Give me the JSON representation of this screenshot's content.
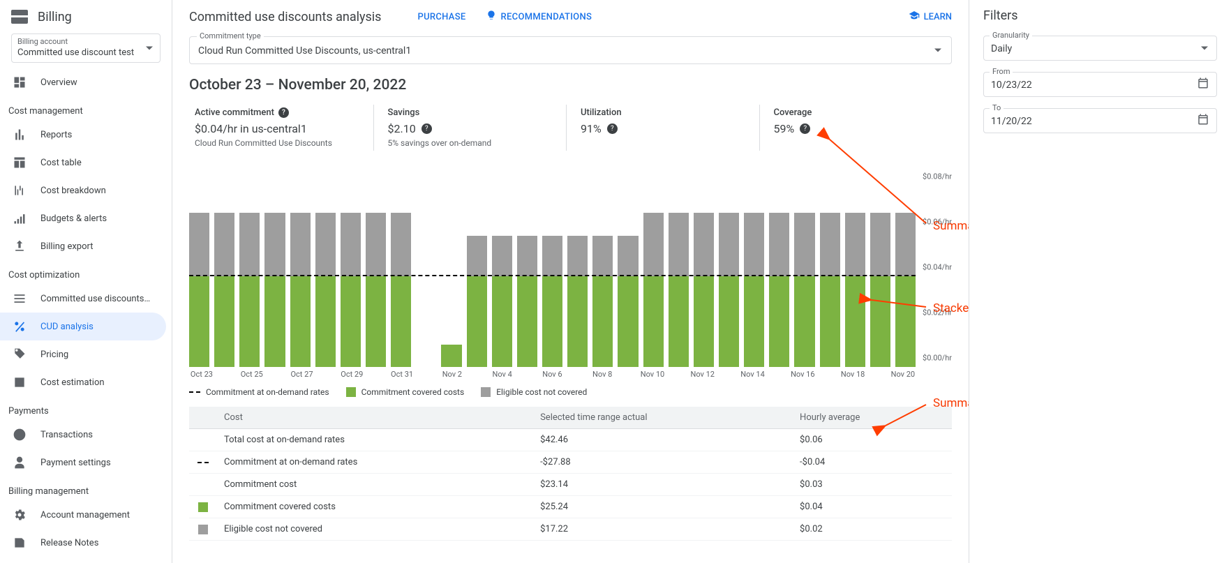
{
  "sidebar": {
    "title": "Billing",
    "account_label": "Billing account",
    "account_value": "Committed use discount test",
    "groups": [
      {
        "title": null,
        "items": [
          {
            "icon": "dashboard",
            "label": "Overview",
            "active": false
          }
        ]
      },
      {
        "title": "Cost management",
        "items": [
          {
            "icon": "bar_chart",
            "label": "Reports"
          },
          {
            "icon": "table",
            "label": "Cost table"
          },
          {
            "icon": "breakdown",
            "label": "Cost breakdown"
          },
          {
            "icon": "budgets",
            "label": "Budgets & alerts"
          },
          {
            "icon": "export",
            "label": "Billing export"
          }
        ]
      },
      {
        "title": "Cost optimization",
        "items": [
          {
            "icon": "list",
            "label": "Committed use discounts…"
          },
          {
            "icon": "percent",
            "label": "CUD analysis",
            "active": true
          },
          {
            "icon": "tag",
            "label": "Pricing"
          },
          {
            "icon": "estimate",
            "label": "Cost estimation"
          }
        ]
      },
      {
        "title": "Payments",
        "items": [
          {
            "icon": "clock",
            "label": "Transactions"
          },
          {
            "icon": "person",
            "label": "Payment settings"
          }
        ]
      },
      {
        "title": "Billing management",
        "items": [
          {
            "icon": "gear",
            "label": "Account management"
          },
          {
            "icon": "notes",
            "label": "Release Notes"
          }
        ]
      }
    ]
  },
  "header": {
    "title": "Committed use discounts analysis",
    "purchase": "PURCHASE",
    "recommendations": "RECOMMENDATIONS",
    "learn": "LEARN"
  },
  "commitment_type": {
    "label": "Commitment type",
    "value": "Cloud Run Committed Use Discounts, us-central1"
  },
  "date_range": "October 23 – November 20, 2022",
  "cards": {
    "active": {
      "title": "Active commitment",
      "value": "$0.04/hr in us-central1",
      "sub": "Cloud Run Committed Use Discounts"
    },
    "savings": {
      "title": "Savings",
      "value": "$2.10",
      "sub": "5% savings over on-demand"
    },
    "utilization": {
      "title": "Utilization",
      "value": "91%"
    },
    "coverage": {
      "title": "Coverage",
      "value": "59%"
    }
  },
  "chart": {
    "type": "stacked_bar",
    "y_max": 0.08,
    "y_ticks": [
      0.0,
      0.02,
      0.04,
      0.06,
      0.08
    ],
    "y_tick_labels": [
      "$0.00/hr",
      "$0.02/hr",
      "$0.04/hr",
      "$0.06/hr",
      "$0.08/hr"
    ],
    "commitment_line": 0.04,
    "colors": {
      "covered": "#7cb342",
      "not_covered": "#9e9e9e",
      "commit_line": "#000000",
      "axis_text": "#5f6368",
      "background": "#ffffff"
    },
    "bar_width_ratio": 0.78,
    "x_labels": [
      "Oct 23",
      "",
      "Oct 25",
      "",
      "Oct 27",
      "",
      "Oct 29",
      "",
      "Oct 31",
      "",
      "Nov 2",
      "",
      "Nov 4",
      "",
      "Nov 6",
      "",
      "Nov 8",
      "",
      "Nov 10",
      "",
      "Nov 12",
      "",
      "Nov 14",
      "",
      "Nov 16",
      "",
      "Nov 18",
      "",
      "Nov 20"
    ],
    "bars": [
      {
        "covered": 0.04,
        "not_covered": 0.028
      },
      {
        "covered": 0.04,
        "not_covered": 0.028
      },
      {
        "covered": 0.04,
        "not_covered": 0.028
      },
      {
        "covered": 0.04,
        "not_covered": 0.028
      },
      {
        "covered": 0.04,
        "not_covered": 0.028
      },
      {
        "covered": 0.04,
        "not_covered": 0.028
      },
      {
        "covered": 0.04,
        "not_covered": 0.028
      },
      {
        "covered": 0.04,
        "not_covered": 0.028
      },
      {
        "covered": 0.04,
        "not_covered": 0.028
      },
      {
        "covered": 0.0,
        "not_covered": 0.0
      },
      {
        "covered": 0.01,
        "not_covered": 0.0
      },
      {
        "covered": 0.04,
        "not_covered": 0.018
      },
      {
        "covered": 0.04,
        "not_covered": 0.018
      },
      {
        "covered": 0.04,
        "not_covered": 0.018
      },
      {
        "covered": 0.04,
        "not_covered": 0.018
      },
      {
        "covered": 0.04,
        "not_covered": 0.018
      },
      {
        "covered": 0.04,
        "not_covered": 0.018
      },
      {
        "covered": 0.04,
        "not_covered": 0.018
      },
      {
        "covered": 0.04,
        "not_covered": 0.028
      },
      {
        "covered": 0.04,
        "not_covered": 0.028
      },
      {
        "covered": 0.04,
        "not_covered": 0.028
      },
      {
        "covered": 0.04,
        "not_covered": 0.028
      },
      {
        "covered": 0.04,
        "not_covered": 0.028
      },
      {
        "covered": 0.04,
        "not_covered": 0.028
      },
      {
        "covered": 0.04,
        "not_covered": 0.028
      },
      {
        "covered": 0.04,
        "not_covered": 0.028
      },
      {
        "covered": 0.04,
        "not_covered": 0.028
      },
      {
        "covered": 0.04,
        "not_covered": 0.028
      },
      {
        "covered": 0.04,
        "not_covered": 0.028
      }
    ],
    "legend": {
      "commit": "Commitment at on-demand rates",
      "covered": "Commitment covered costs",
      "not_covered": "Eligible cost not covered"
    }
  },
  "table": {
    "columns": [
      "Cost",
      "Selected time range actual",
      "Hourly average"
    ],
    "rows": [
      {
        "swatch": "",
        "label": "Total cost at on-demand rates",
        "actual": "$42.46",
        "hourly": "$0.06"
      },
      {
        "swatch": "dash",
        "label": "Commitment at on-demand rates",
        "actual": "-$27.88",
        "hourly": "-$0.04"
      },
      {
        "swatch": "",
        "label": "Commitment cost",
        "actual": "$23.14",
        "hourly": "$0.03"
      },
      {
        "swatch": "green",
        "label": "Commitment covered costs",
        "actual": "$25.24",
        "hourly": "$0.04"
      },
      {
        "swatch": "grey",
        "label": "Eligible cost not covered",
        "actual": "$17.22",
        "hourly": "$0.02"
      }
    ]
  },
  "filters": {
    "title": "Filters",
    "granularity_label": "Granularity",
    "granularity_value": "Daily",
    "from_label": "From",
    "from_value": "10/23/22",
    "to_label": "To",
    "to_value": "11/20/22"
  },
  "annotations": {
    "cards": "Summary cards",
    "chart": "Stacked bar chart",
    "table": "Summary table"
  }
}
